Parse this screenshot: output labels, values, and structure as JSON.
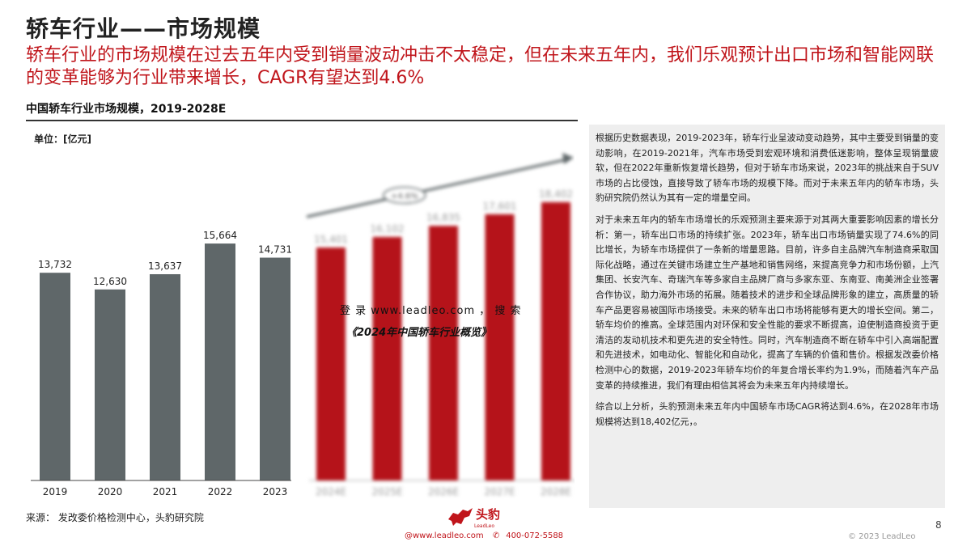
{
  "header": {
    "title": "轿车行业——市场规模",
    "subtitle": "轿车行业的市场规模在过去五年内受到销量波动冲击不太稳定，但在未来五年内，我们乐观预计出口市场和智能网联的变革能够为行业带来增长，CAGR有望达到4.6%"
  },
  "chart_title": "中国轿车行业市场规模，2019-2028E",
  "unit_label": "单位：[亿元]",
  "watermark": {
    "line1": "登 录 www.leadleo.com ， 搜 索",
    "line2": "《2024年中国轿车行业概览》"
  },
  "chart_data": {
    "type": "bar",
    "categories": [
      "2019",
      "2020",
      "2021",
      "2022",
      "2023",
      "2024E",
      "2025E",
      "2026E",
      "2027E",
      "2028E"
    ],
    "values": [
      13732,
      12630,
      13637,
      15664,
      14731,
      15401,
      16102,
      16835,
      17601,
      18402
    ],
    "value_labels": [
      "13,732",
      "12,630",
      "13,637",
      "15,664",
      "14,731",
      "15,401",
      "16,102",
      "16,835",
      "17,601",
      "18,402"
    ],
    "forecast_start_index": 5,
    "cagr_label": "+4.6%",
    "ylim": [
      0,
      20000
    ],
    "colors": {
      "historical": "#5f6769",
      "forecast": "#b5131a",
      "arrow": "#5f6769"
    },
    "legend": "none",
    "grid": false
  },
  "analysis": {
    "paragraphs": [
      "根据历史数据表现，2019-2023年，轿车行业呈波动变动趋势，其中主要受到销量的变动影响，在2019-2021年，汽车市场受到宏观环境和消费低迷影响，整体呈现销量疲软，但在2022年重新恢复增长趋势，但对于轿车市场来说，2023年的挑战来自于SUV市场的占比侵蚀，直接导致了轿车市场的规模下降。而对于未来五年内的轿车市场，头豹研究院仍然认为其有一定的增量空间。",
      "对于未来五年内的轿车市场增长的乐观预测主要来源于对其两大重要影响因素的增长分析：第一，轿车出口市场的持续扩张。2023年，轿车出口市场销量实现了74.6%的同比增长，为轿车市场提供了一条新的增量思路。目前，许多自主品牌汽车制造商采取国际化战略，通过在关键市场建立生产基地和销售网络，来提高竞争力和市场份额，上汽集团、长安汽车、奇瑞汽车等多家自主品牌厂商与多家东亚、东南亚、南美洲企业签署合作协议，助力海外市场的拓展。随着技术的进步和全球品牌形象的建立，高质量的轿车产品更容易被国际市场接受。未来的轿车出口市场将能够有更大的增长空间。第二，轿车均价的推高。全球范围内对环保和安全性能的要求不断提高，迫使制造商投资于更清洁的发动机技术和更先进的安全特性。同时，汽车制造商不断在轿车中引入高端配置和先进技术，如电动化、智能化和自动化，提高了车辆的价值和售价。根据发改委价格检测中心的数据，2019-2023年轿车均价的年复合增长率约为1.9%，而随着汽车产品变革的持续推进，我们有理由相信其将会为未来五年内持续增长。",
      "综合以上分析，头豹预测未来五年内中国轿车市场CAGR将达到4.6%，在2028年市场规模将达到18,402亿元，。"
    ]
  },
  "footer": {
    "source": "来源：  发改委价格检测中心，头豹研究院",
    "brand_name": "头豹",
    "brand_sub": "LeadLeo",
    "email": "@www.leadleo.com",
    "phone": "400-072-5588",
    "page_number": "8",
    "copyright": "© 2023 LeadLeo"
  }
}
